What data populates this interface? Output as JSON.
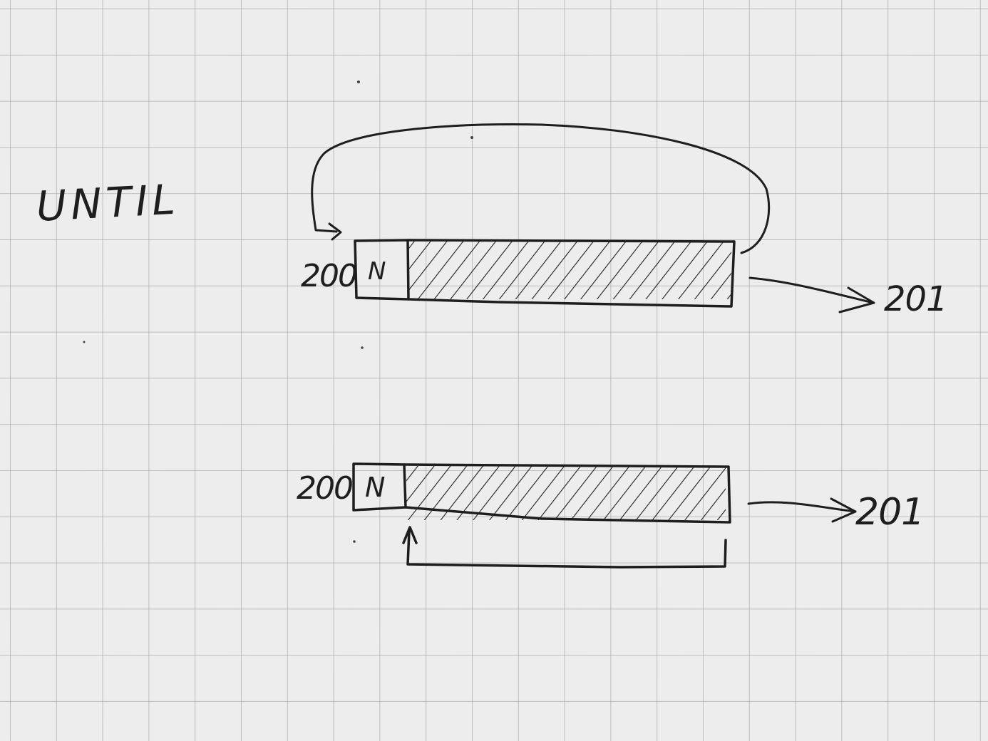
{
  "diagram": {
    "title": "UNTIL",
    "top": {
      "start_label": "200",
      "node_label": "N",
      "end_label": "201"
    },
    "bottom": {
      "start_label": "200",
      "node_label": "N",
      "end_label": "201"
    }
  },
  "colors": {
    "ink": "#1e1e1e",
    "paper": "#ededed",
    "grid": "#969696"
  }
}
